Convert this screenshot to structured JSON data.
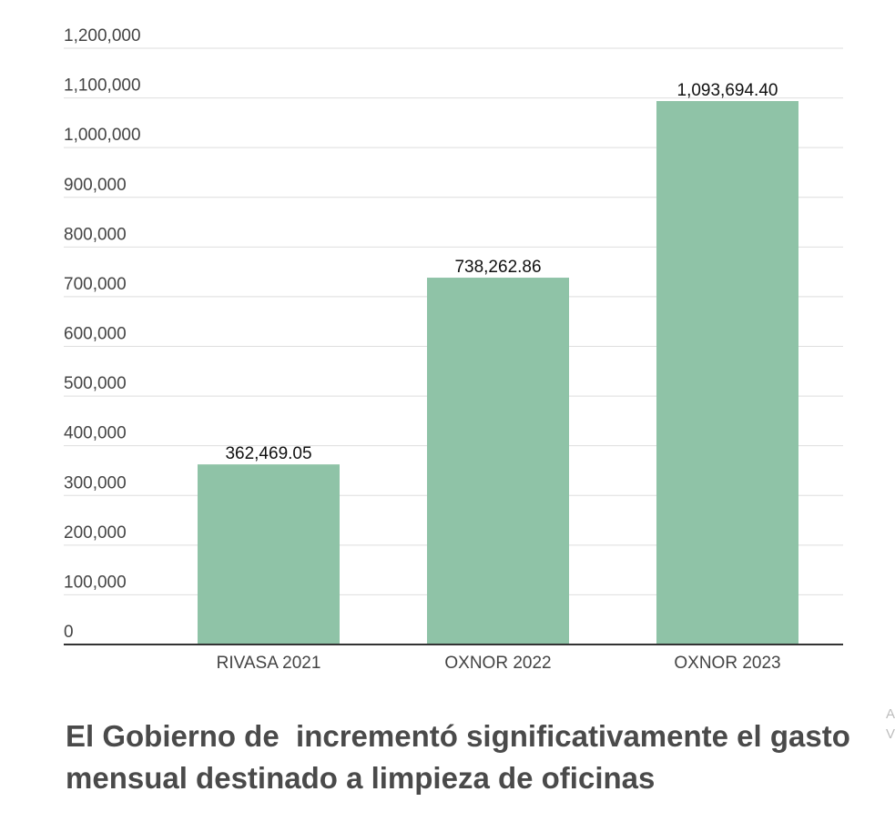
{
  "chart_data": {
    "type": "bar",
    "categories": [
      "RIVASA 2021",
      "OXNOR 2022",
      "OXNOR 2023"
    ],
    "values": [
      362469.05,
      738262.86,
      1093694.4
    ],
    "data_labels": [
      "362,469.05",
      "738,262.86",
      "1,093,694.40"
    ],
    "y_ticks": [
      "0",
      "100,000",
      "200,000",
      "300,000",
      "400,000",
      "500,000",
      "600,000",
      "700,000",
      "800,000",
      "900,000",
      "1,000,000",
      "1,100,000",
      "1,200,000"
    ],
    "ylim": [
      0,
      1200000
    ],
    "grid": true,
    "bar_color": "#8fc3a7",
    "grid_color": "#dedede",
    "axis_color": "#333333"
  },
  "caption": "El Gobierno de  incrementó significativamente el gasto\nmensual destinado a limpieza de oficinas",
  "edge_text": [
    "A",
    "V"
  ]
}
